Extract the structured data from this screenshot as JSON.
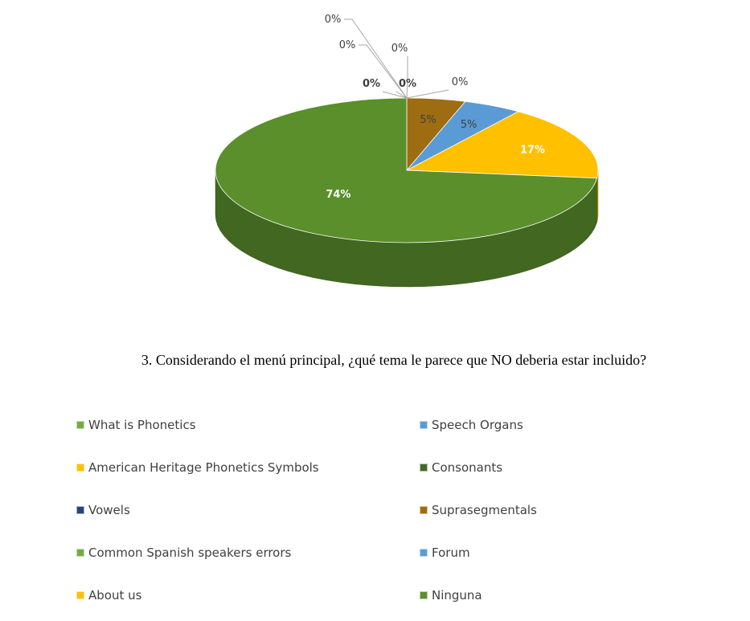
{
  "chart_data": {
    "type": "pie",
    "title": "3. Considerando el menú principal, ¿qué tema le parece que NO deberia estar incluido?",
    "series": [
      {
        "name": "What is Phonetics",
        "value": 0,
        "label": "0%",
        "color": "#70ad47"
      },
      {
        "name": "Speech Organs",
        "value": 0,
        "label": "0%",
        "color": "#5b9bd5"
      },
      {
        "name": "American Heritage  Phonetics Symbols",
        "value": 0,
        "label": "0%",
        "color": "#ffc000"
      },
      {
        "name": "Consonants",
        "value": 0,
        "label": "0%",
        "color": "#43682b"
      },
      {
        "name": "Vowels",
        "value": 0,
        "label": "0%",
        "color": "#264478"
      },
      {
        "name": "Suprasegmentals",
        "value": 5,
        "label": "5%",
        "color": "#9e6c11"
      },
      {
        "name": "Common Spanish speakers errors",
        "value": 0,
        "label": "0%",
        "color": "#70ad47"
      },
      {
        "name": "Forum",
        "value": 5,
        "label": "5%",
        "color": "#5b9bd5"
      },
      {
        "name": "About us",
        "value": 17,
        "label": "17%",
        "color": "#ffc000"
      },
      {
        "name": "Ninguna",
        "value": 74,
        "label": "74%",
        "color": "#5a8f2c"
      }
    ],
    "legend_position": "bottom"
  }
}
